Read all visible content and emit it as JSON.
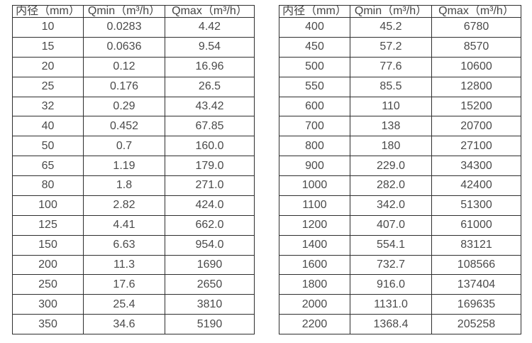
{
  "page": {
    "background_color": "#ffffff",
    "text_color": "#4a4a4a",
    "border_color": "#2e2e2e"
  },
  "tables": [
    {
      "name": "flow-rate-table-small-diameters",
      "headers": [
        "内径（mm）",
        "Qmin（m³/h）",
        "Qmax（m³/h）"
      ],
      "rows": [
        [
          "10",
          "0.0283",
          "4.42"
        ],
        [
          "15",
          "0.0636",
          "9.54"
        ],
        [
          "20",
          "0.12",
          "16.96"
        ],
        [
          "25",
          "0.176",
          "26.5"
        ],
        [
          "32",
          "0.29",
          "43.42"
        ],
        [
          "40",
          "0.452",
          "67.85"
        ],
        [
          "50",
          "0.7",
          "160.0"
        ],
        [
          "65",
          "1.19",
          "179.0"
        ],
        [
          "80",
          "1.8",
          "271.0"
        ],
        [
          "100",
          "2.82",
          "424.0"
        ],
        [
          "125",
          "4.41",
          "662.0"
        ],
        [
          "150",
          "6.63",
          "954.0"
        ],
        [
          "200",
          "11.3",
          "1690"
        ],
        [
          "250",
          "17.6",
          "2650"
        ],
        [
          "300",
          "25.4",
          "3810"
        ],
        [
          "350",
          "34.6",
          "5190"
        ]
      ]
    },
    {
      "name": "flow-rate-table-large-diameters",
      "headers": [
        "内径（mm）",
        "Qmin（m³/h）",
        "Qmax（m³/h）"
      ],
      "rows": [
        [
          "400",
          "45.2",
          "6780"
        ],
        [
          "450",
          "57.2",
          "8570"
        ],
        [
          "500",
          "77.6",
          "10600"
        ],
        [
          "550",
          "85.5",
          "12800"
        ],
        [
          "600",
          "110",
          "15200"
        ],
        [
          "700",
          "138",
          "20700"
        ],
        [
          "800",
          "180",
          "27100"
        ],
        [
          "900",
          "229.0",
          "34300"
        ],
        [
          "1000",
          "282.0",
          "42400"
        ],
        [
          "1100",
          "342.0",
          "51300"
        ],
        [
          "1200",
          "407.0",
          "61000"
        ],
        [
          "1400",
          "554.1",
          "83121"
        ],
        [
          "1600",
          "732.7",
          "108566"
        ],
        [
          "1800",
          "916.0",
          "137404"
        ],
        [
          "2000",
          "1131.0",
          "169635"
        ],
        [
          "2200",
          "1368.4",
          "205258"
        ]
      ]
    }
  ]
}
